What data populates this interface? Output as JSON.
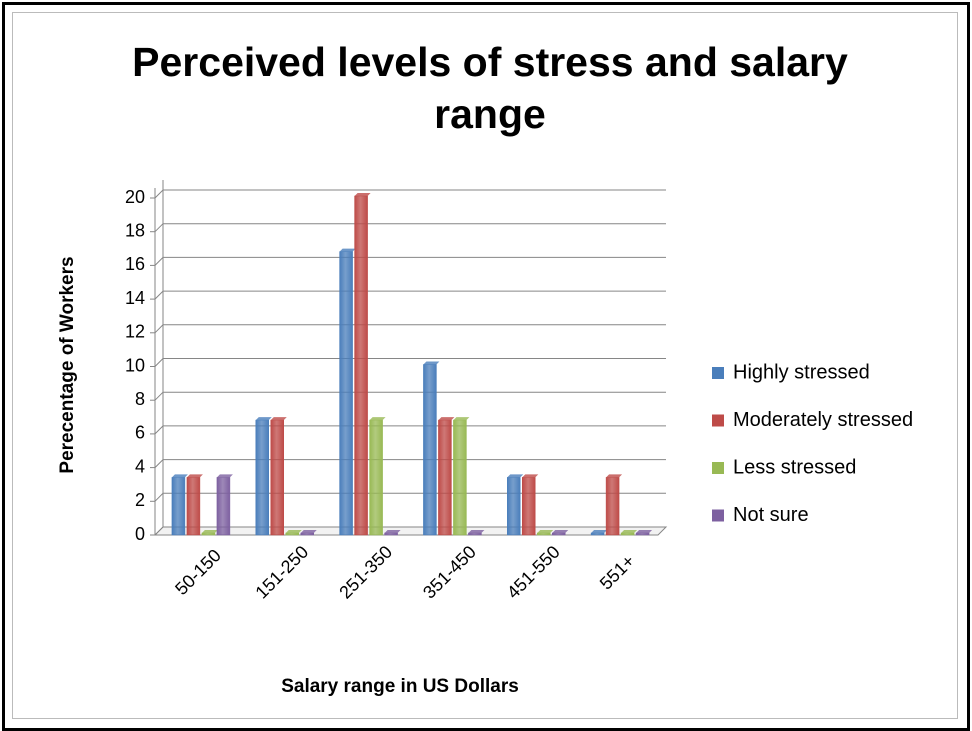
{
  "chart_data": {
    "type": "bar",
    "title": "Perceived levels of stress and salary range",
    "x_label": "Salary range in US Dollars",
    "y_label": "Perecentage of Workers",
    "categories": [
      "50-150",
      "151-250",
      "251-350",
      "351-450",
      "451-550",
      "551+"
    ],
    "series": [
      {
        "name": "Highly stressed",
        "color": "#4a7ebb",
        "values": [
          3.3,
          6.7,
          16.7,
          10,
          3.3,
          0
        ]
      },
      {
        "name": "Moderately stressed",
        "color": "#be4b48",
        "values": [
          3.3,
          6.7,
          20,
          6.7,
          3.3,
          3.3
        ]
      },
      {
        "name": "Less stressed",
        "color": "#98b954",
        "values": [
          0,
          0,
          6.7,
          6.7,
          0,
          0
        ]
      },
      {
        "name": "Not sure",
        "color": "#7d60a0",
        "values": [
          3.3,
          0,
          0,
          0,
          0,
          0
        ]
      }
    ],
    "ylim": [
      0,
      20
    ],
    "yticks": [
      0,
      2,
      4,
      6,
      8,
      10,
      12,
      14,
      16,
      18,
      20
    ],
    "grid": true,
    "legend": "right"
  }
}
